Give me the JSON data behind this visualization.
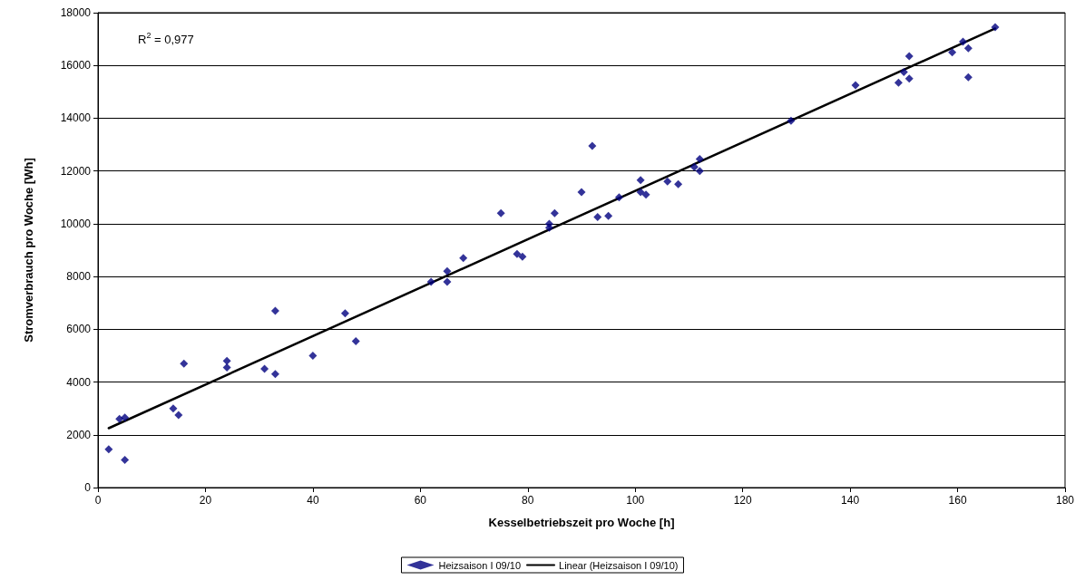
{
  "chart_data": {
    "type": "scatter",
    "xlabel": "Kesselbetriebszeit pro Woche [h]",
    "ylabel": "Stromverbrauch pro Woche [Wh]",
    "xlim": [
      0,
      180
    ],
    "xticks": [
      0,
      20,
      40,
      60,
      80,
      100,
      120,
      140,
      160,
      180
    ],
    "ylim": [
      0,
      18000
    ],
    "yticks": [
      0,
      2000,
      4000,
      6000,
      8000,
      10000,
      12000,
      14000,
      16000,
      18000
    ],
    "grid": "y",
    "legend": "bottom",
    "marker": "diamond",
    "annotations": [
      "R$^{2}$ = 0,977"
    ],
    "series": [
      {
        "name": "Heizsaison I 09/10",
        "color": "#000080",
        "x": [
          2,
          4,
          5,
          5,
          14,
          15,
          16,
          24,
          24,
          31,
          33,
          33,
          40,
          46,
          48,
          62,
          65,
          65,
          68,
          75,
          78,
          79,
          84,
          84,
          85,
          90,
          92,
          93,
          95,
          97,
          101,
          101,
          102,
          106,
          108,
          111,
          112,
          112,
          129,
          141,
          149,
          150,
          151,
          151,
          159,
          161,
          162,
          162,
          167
        ],
        "values": [
          1450,
          2600,
          2650,
          1050,
          3000,
          2750,
          4700,
          4800,
          4550,
          4500,
          6700,
          4300,
          5000,
          6600,
          5550,
          7800,
          8200,
          7800,
          8700,
          10400,
          8850,
          8750,
          9850,
          10000,
          10400,
          11200,
          12950,
          10250,
          10300,
          11000,
          11650,
          11200,
          11100,
          11600,
          11500,
          12150,
          12450,
          12000,
          13900,
          15250,
          15350,
          15750,
          16350,
          15500,
          16500,
          16900,
          16650,
          15550,
          17450
        ]
      },
      {
        "name": "Linear (Heizsaison I 09/10)",
        "type": "line",
        "color": "#000000",
        "marker": "none",
        "line_style": "solid",
        "x": [
          2,
          167
        ],
        "values": [
          2250,
          17400
        ]
      }
    ]
  }
}
